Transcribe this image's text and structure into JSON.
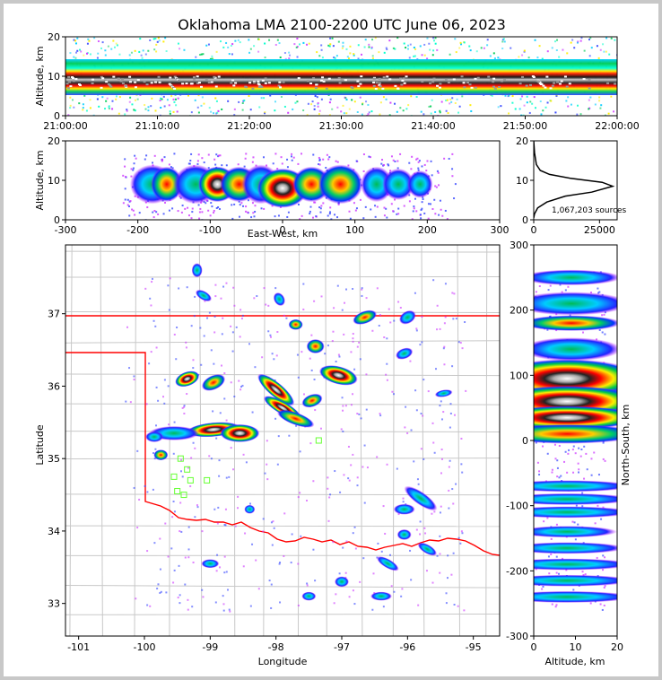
{
  "chart_data": [
    {
      "type": "heatmap",
      "panel": "altitude-time",
      "title": "Oklahoma LMA 2100-2200 UTC June 06, 2023",
      "xlabel": "",
      "ylabel": "Altitude, km",
      "x_tick_labels": [
        "21:00:00",
        "21:10:00",
        "21:20:00",
        "21:30:00",
        "21:40:00",
        "21:50:00",
        "22:00:00"
      ],
      "y_ticks": [
        0,
        10,
        20
      ],
      "ylim": [
        0,
        20
      ],
      "peak_altitude_km": 8.5
    },
    {
      "type": "heatmap",
      "panel": "altitude-east-west",
      "xlabel": "East-West, km",
      "ylabel": "Altitude, km",
      "x_ticks": [
        -300,
        -200,
        -100,
        0,
        100,
        200,
        300
      ],
      "xlim": [
        -300,
        300
      ],
      "y_ticks": [
        0,
        10,
        20
      ],
      "ylim": [
        0,
        20
      ]
    },
    {
      "type": "line",
      "panel": "altitude-histogram",
      "x_ticks": [
        0,
        25000
      ],
      "y_ticks": [
        0,
        10,
        20
      ],
      "ylim": [
        0,
        20
      ],
      "annotation": "1,067,203 sources",
      "x": [
        0,
        300,
        1500,
        5000,
        12000,
        22000,
        30000,
        26000,
        14000,
        6000,
        2500,
        1000,
        300,
        0
      ],
      "y": [
        0.5,
        1.5,
        3,
        4.5,
        6,
        7,
        8.5,
        9.5,
        10.5,
        11.5,
        12.5,
        14,
        17,
        20
      ]
    },
    {
      "type": "heatmap",
      "panel": "plan-view",
      "xlabel": "Longitude",
      "ylabel": "Latitude",
      "x_ticks": [
        -101,
        -100,
        -99,
        -98,
        -97,
        -96,
        -95
      ],
      "xlim": [
        -101.2,
        -94.6
      ],
      "y_ticks": [
        33,
        34,
        35,
        36,
        37
      ],
      "ylim": [
        32.55,
        37.95
      ],
      "station_markers": [
        [
          -99.45,
          35.0
        ],
        [
          -99.35,
          34.85
        ],
        [
          -99.55,
          34.75
        ],
        [
          -99.3,
          34.7
        ],
        [
          -99.05,
          34.7
        ],
        [
          -99.5,
          34.55
        ],
        [
          -99.4,
          34.5
        ],
        [
          -97.35,
          35.25
        ]
      ]
    },
    {
      "type": "heatmap",
      "panel": "north-south-altitude",
      "xlabel": "Altitude, km",
      "ylabel": "North-South, km",
      "x_ticks": [
        0,
        10,
        20
      ],
      "xlim": [
        0,
        20
      ],
      "y_ticks": [
        300,
        200,
        100,
        0,
        -100,
        -200,
        -300
      ],
      "ylim": [
        -300,
        300
      ]
    }
  ]
}
